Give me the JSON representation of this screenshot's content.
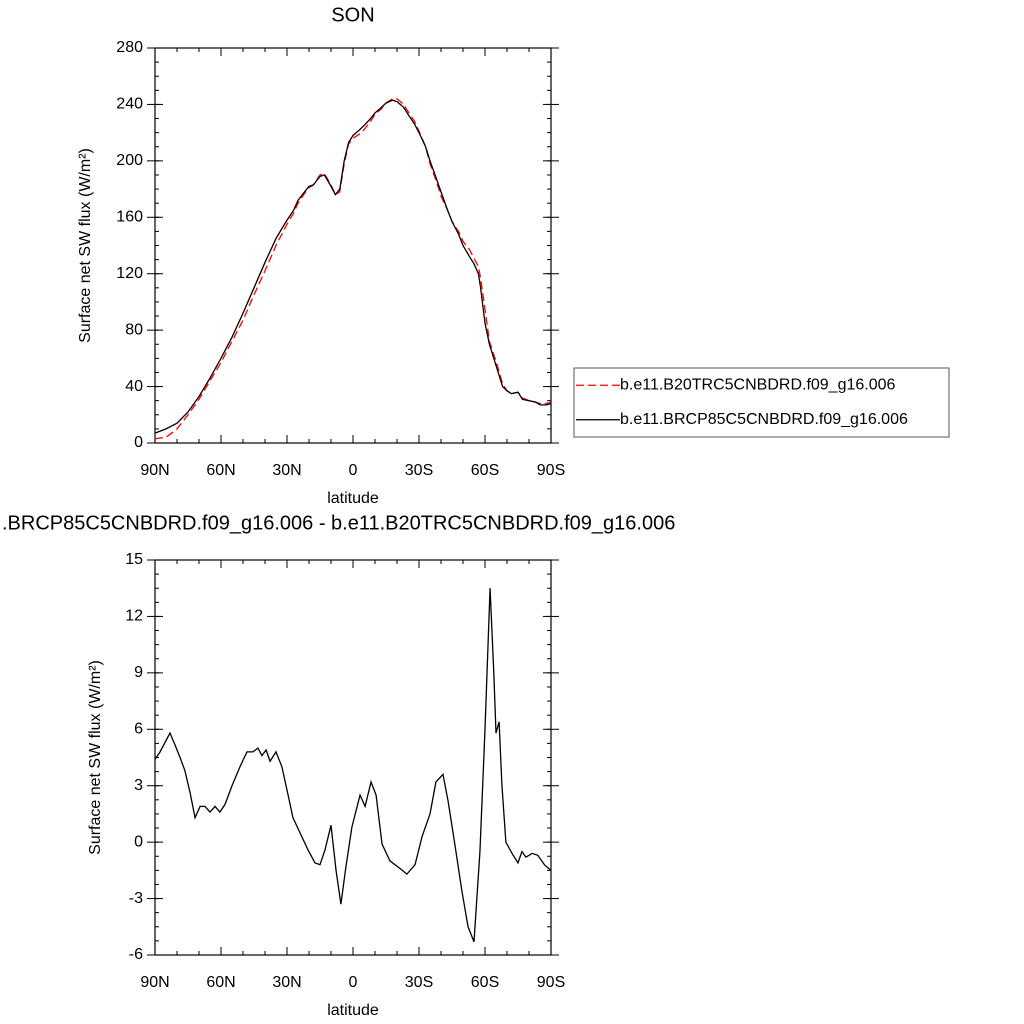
{
  "chart_data": [
    {
      "type": "line",
      "title": "SON",
      "xlabel": "latitude",
      "ylabel": "Surface net SW flux (W/m²)",
      "x": [
        90,
        85,
        80,
        75,
        70,
        65,
        60,
        55,
        50,
        45,
        40,
        35,
        30,
        27,
        25,
        22,
        20,
        18,
        15,
        13,
        10,
        8,
        6,
        4,
        2,
        0,
        -3,
        -5,
        -8,
        -10,
        -13,
        -15,
        -18,
        -20,
        -23,
        -25,
        -28,
        -30,
        -33,
        -35,
        -38,
        -40,
        -43,
        -45,
        -48,
        -50,
        -53,
        -55,
        -57,
        -58,
        -60,
        -62,
        -65,
        -68,
        -70,
        -72,
        -75,
        -77,
        -80,
        -83,
        -85,
        -88,
        -90
      ],
      "series": [
        {
          "name": "b.e11.B20TRC5CNBDRD.f09_g16.006",
          "color": "#ff0000",
          "line_style": "dashed",
          "values": [
            3,
            4,
            10,
            20,
            31,
            44,
            57,
            72,
            87,
            105,
            122,
            140,
            155,
            163,
            170,
            177,
            181,
            183,
            190,
            191,
            183,
            176,
            178,
            198,
            212,
            216,
            219,
            222,
            228,
            233,
            237,
            241,
            244,
            244,
            240,
            235,
            228,
            221,
            210,
            198,
            185,
            175,
            165,
            157,
            150,
            143,
            137,
            131,
            125,
            117,
            95,
            72,
            58,
            42,
            37,
            35,
            36,
            32,
            30,
            29,
            28,
            28,
            29
          ]
        },
        {
          "name": "b.e11.BRCP85C5CNBDRD.f09_g16.006",
          "color": "#000000",
          "line_style": "solid",
          "values": [
            7,
            10,
            14,
            22,
            33,
            46,
            60,
            75,
            92,
            110,
            128,
            145,
            158,
            165,
            172,
            178,
            182,
            183,
            189,
            190,
            182,
            176,
            180,
            200,
            213,
            218,
            222,
            225,
            230,
            234,
            238,
            241,
            243,
            242,
            238,
            233,
            226,
            220,
            210,
            200,
            187,
            178,
            165,
            157,
            148,
            140,
            132,
            127,
            120,
            110,
            85,
            70,
            55,
            40,
            37,
            35,
            36,
            31,
            30,
            29,
            27,
            27,
            28
          ]
        }
      ],
      "xlim": [
        90,
        -90
      ],
      "xticks": [
        {
          "value": 90,
          "label": "90N"
        },
        {
          "value": 60,
          "label": "60N"
        },
        {
          "value": 30,
          "label": "30N"
        },
        0,
        {
          "value": -30,
          "label": "30S"
        },
        {
          "value": -60,
          "label": "60S"
        },
        {
          "value": -90,
          "label": "90S"
        }
      ],
      "ylim": [
        0,
        280
      ],
      "yticks": [
        0,
        40,
        80,
        120,
        160,
        200,
        240,
        280
      ],
      "legend": "outside right"
    },
    {
      "type": "line",
      "title": ".BRCP85C5CNBDRD.f09_g16.006 - b.e11.B20TRC5CNBDRD.f09_g16.006",
      "xlabel": "latitude",
      "ylabel": "Surface net SW flux (W/m²)",
      "x": [
        90,
        87.7,
        83.2,
        81,
        78.6,
        76.4,
        74,
        71.8,
        69.5,
        67.3,
        65,
        62.7,
        60.5,
        58.2,
        55,
        51.4,
        48.2,
        45.5,
        43.2,
        41.4,
        39.5,
        37.7,
        35,
        32.3,
        29.5,
        27.3,
        24.1,
        20.5,
        17.3,
        15,
        12.7,
        10,
        7.7,
        5.5,
        3.2,
        0.5,
        -3.2,
        -5.5,
        -8.2,
        -10.5,
        -13.2,
        -16.8,
        -21.4,
        -24.5,
        -28.2,
        -31.4,
        -35,
        -37.7,
        -40.9,
        -43.2,
        -46.4,
        -49.5,
        -52.3,
        -55,
        -57.7,
        -60,
        -62.3,
        -64,
        -65,
        -66.4,
        -67.7,
        -69.5,
        -72.3,
        -75,
        -76.8,
        -78.6,
        -81.4,
        -84,
        -87,
        -90
      ],
      "series": [
        {
          "name": null,
          "color": "#000000",
          "line_style": "solid",
          "values": [
            4.4,
            4.8,
            5.8,
            5.2,
            4.5,
            3.8,
            2.6,
            1.3,
            1.9,
            1.9,
            1.6,
            1.9,
            1.6,
            2.0,
            3.0,
            4.0,
            4.8,
            4.8,
            5.0,
            4.6,
            4.9,
            4.3,
            4.8,
            4.0,
            2.5,
            1.3,
            0.5,
            -0.4,
            -1.1,
            -1.2,
            -0.4,
            0.9,
            -1.5,
            -3.3,
            -1.3,
            0.8,
            2.5,
            1.9,
            3.2,
            2.5,
            -0.1,
            -1.0,
            -1.4,
            -1.7,
            -1.2,
            0.3,
            1.5,
            3.2,
            3.6,
            2.2,
            -0.2,
            -2.6,
            -4.5,
            -5.3,
            -0.5,
            6.0,
            13.5,
            9.0,
            5.8,
            6.4,
            3.0,
            0.0,
            -0.6,
            -1.1,
            -0.5,
            -0.8,
            -0.6,
            -0.7,
            -1.2,
            -1.5
          ]
        }
      ],
      "xlim": [
        90,
        -90
      ],
      "xticks": [
        {
          "value": 90,
          "label": "90N"
        },
        {
          "value": 60,
          "label": "60N"
        },
        {
          "value": 30,
          "label": "30N"
        },
        0,
        {
          "value": -30,
          "label": "30S"
        },
        {
          "value": -60,
          "label": "60S"
        },
        {
          "value": -90,
          "label": "90S"
        }
      ],
      "ylim": [
        -6,
        15
      ],
      "yticks": [
        -6,
        -3,
        0,
        3,
        6,
        9,
        12,
        15
      ]
    }
  ]
}
